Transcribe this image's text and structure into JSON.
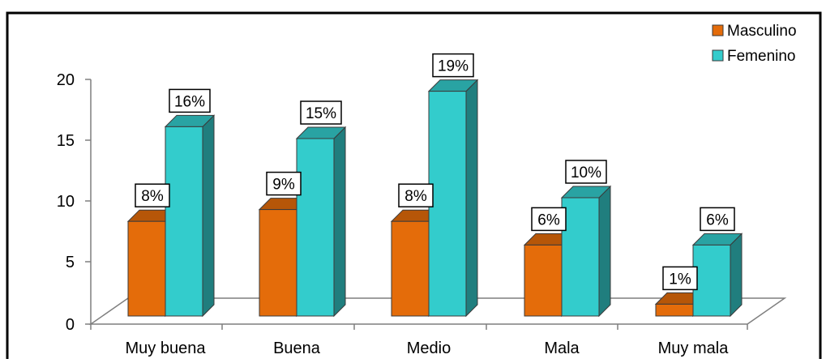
{
  "chart_data": {
    "type": "bar",
    "categories": [
      "Muy buena",
      "Buena",
      "Medio",
      "Mala",
      "Muy mala"
    ],
    "series": [
      {
        "name": "Masculino",
        "values": [
          8,
          9,
          8,
          6,
          1
        ],
        "labels": [
          "8%",
          "9%",
          "8%",
          "6%",
          "1%"
        ],
        "color": "#E46C0A"
      },
      {
        "name": "Femenino",
        "values": [
          16,
          15,
          19,
          10,
          6
        ],
        "labels": [
          "16%",
          "15%",
          "19%",
          "10%",
          "6%"
        ],
        "color": "#33CCCC"
      }
    ],
    "ylim": [
      0,
      20
    ],
    "yticks": [
      "0",
      "5",
      "10",
      "15",
      "20"
    ],
    "legend_position": "top-right",
    "style": "3d-clustered-column"
  }
}
